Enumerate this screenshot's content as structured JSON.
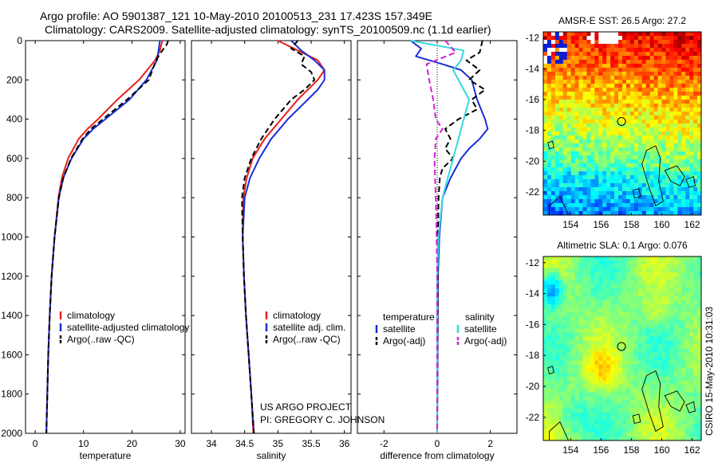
{
  "header": {
    "line1": "Argo profile: AO 5901387_121 10-May-2010 20100513_231 17.423S 157.349E",
    "line2": "Climatology: CARS2009. Satellite-adjusted climatology: synTS_20100509.nc (1.1d earlier)"
  },
  "colors": {
    "climatology": "#e8201c",
    "satellite": "#1a2ed6",
    "argo": "#000000",
    "sat_salinity": "#35d8e0",
    "argo_salinity": "#d21fd6"
  },
  "credits": {
    "line1": "US ARGO PROJECT",
    "line2": "PI: GREGORY C. JOHNSON",
    "timestamp": "CSIRO 15-May-2010 10:31:03"
  },
  "chart_data": [
    {
      "id": "temperature",
      "type": "line",
      "xlabel": "temperature",
      "ylabel": "",
      "xlim": [
        -2,
        31
      ],
      "ylim": [
        2000,
        0
      ],
      "xticks": [
        0,
        10,
        20,
        30
      ],
      "yticks": [
        0,
        200,
        400,
        600,
        800,
        1000,
        1200,
        1400,
        1600,
        1800,
        2000
      ],
      "legend": [
        "climatology",
        "satellite-adjusted climatology",
        "Argo(..raw -QC)"
      ],
      "series": [
        {
          "name": "climatology",
          "color": "climatology",
          "dash": false,
          "depth": [
            0,
            50,
            100,
            200,
            300,
            400,
            450,
            500,
            600,
            700,
            800,
            1000,
            1200,
            1400,
            1600,
            1800,
            2000
          ],
          "values": [
            26.3,
            25.8,
            24.8,
            21.5,
            17.0,
            13.0,
            10.8,
            9.0,
            6.8,
            5.5,
            4.8,
            4.0,
            3.4,
            3.0,
            2.7,
            2.5,
            2.3
          ]
        },
        {
          "name": "satellite-adjusted climatology",
          "color": "satellite",
          "dash": false,
          "depth": [
            0,
            50,
            100,
            200,
            300,
            400,
            450,
            500,
            600,
            700,
            800,
            1000,
            1200,
            1400,
            1600,
            1800,
            2000
          ],
          "values": [
            25.8,
            25.5,
            25.2,
            23.0,
            19.5,
            14.5,
            12.0,
            10.0,
            7.5,
            5.8,
            4.9,
            4.0,
            3.4,
            3.0,
            2.7,
            2.5,
            2.3
          ]
        },
        {
          "name": "Argo(..raw -QC)",
          "color": "argo",
          "dash": true,
          "depth": [
            0,
            20,
            60,
            100,
            200,
            300,
            400,
            450,
            500,
            600,
            700,
            800,
            1000,
            1200,
            1400,
            1600,
            1800,
            2000
          ],
          "values": [
            27.5,
            27.2,
            26.0,
            25.0,
            23.5,
            19.0,
            14.0,
            11.5,
            9.8,
            7.4,
            5.8,
            4.9,
            4.0,
            3.4,
            3.0,
            2.7,
            2.5,
            2.3
          ]
        }
      ]
    },
    {
      "id": "salinity",
      "type": "line",
      "xlabel": "salinity",
      "ylabel": "",
      "xlim": [
        33.7,
        36.1
      ],
      "ylim": [
        2000,
        0
      ],
      "xticks": [
        34,
        34.5,
        35,
        35.5,
        36
      ],
      "legend": [
        "climatology",
        "satellite adj. clim.",
        "Argo(..raw -QC)"
      ],
      "series": [
        {
          "name": "climatology",
          "color": "climatology",
          "dash": false,
          "depth": [
            0,
            50,
            100,
            150,
            200,
            250,
            300,
            400,
            500,
            600,
            700,
            800,
            1000,
            1200,
            1400,
            1600,
            1800,
            2000
          ],
          "values": [
            35.0,
            35.3,
            35.6,
            35.7,
            35.6,
            35.45,
            35.3,
            35.05,
            34.8,
            34.62,
            34.53,
            34.48,
            34.47,
            34.49,
            34.52,
            34.56,
            34.6,
            34.63
          ]
        },
        {
          "name": "satellite adj. clim.",
          "color": "satellite",
          "dash": false,
          "depth": [
            0,
            50,
            100,
            150,
            200,
            250,
            300,
            400,
            500,
            600,
            700,
            800,
            1000,
            1200,
            1400,
            1600,
            1800,
            2000
          ],
          "values": [
            35.2,
            35.35,
            35.55,
            35.7,
            35.7,
            35.6,
            35.45,
            35.15,
            34.9,
            34.72,
            34.58,
            34.5,
            34.47,
            34.49,
            34.52,
            34.56,
            34.6,
            34.64
          ]
        },
        {
          "name": "Argo(..raw -QC)",
          "color": "argo",
          "dash": true,
          "depth": [
            0,
            40,
            80,
            120,
            160,
            200,
            250,
            300,
            400,
            500,
            600,
            700,
            800,
            1000,
            1200,
            1400,
            1600,
            1800,
            2000
          ],
          "values": [
            35.3,
            35.2,
            35.4,
            35.35,
            35.5,
            35.55,
            35.4,
            35.2,
            34.95,
            34.75,
            34.6,
            34.5,
            34.46,
            34.47,
            34.49,
            34.52,
            34.56,
            34.6,
            34.64
          ]
        }
      ]
    },
    {
      "id": "difference",
      "type": "line",
      "xlabel": "difference from climatology",
      "ylabel": "",
      "xlim": [
        -3,
        3
      ],
      "ylim": [
        2000,
        0
      ],
      "xticks": [
        -2,
        0,
        2
      ],
      "legend_titles": [
        "temperature",
        "salinity"
      ],
      "legend": [
        "satellite",
        "Argo(-adj)",
        "satellite",
        "Argo(-adj)"
      ],
      "series": [
        {
          "name": "temperature satellite",
          "color": "satellite",
          "dash": false,
          "depth": [
            0,
            40,
            80,
            120,
            150,
            200,
            300,
            400,
            450,
            500,
            550,
            600,
            700,
            800,
            1000,
            1200,
            2000
          ],
          "values": [
            -1.0,
            -0.6,
            -0.8,
            0.2,
            0.9,
            1.3,
            1.5,
            1.8,
            1.9,
            1.6,
            1.2,
            0.9,
            0.5,
            0.2,
            0.08,
            0.03,
            0.0
          ]
        },
        {
          "name": "temperature Argo(-adj)",
          "color": "argo",
          "dash": true,
          "depth": [
            0,
            60,
            100,
            150,
            200,
            250,
            300,
            350,
            400,
            450,
            500,
            550,
            600,
            650,
            700,
            800,
            1000,
            1200,
            2000
          ],
          "values": [
            1.7,
            1.6,
            1.1,
            1.6,
            1.2,
            1.8,
            1.3,
            1.5,
            0.8,
            0.3,
            0.5,
            0.3,
            0.6,
            0.2,
            0.1,
            0.05,
            0.03,
            0.02,
            0.0
          ]
        },
        {
          "name": "salinity satellite",
          "color": "sat_salinity",
          "dash": false,
          "depth": [
            0,
            50,
            100,
            150,
            200,
            300,
            400,
            500,
            600,
            700,
            800,
            1000,
            1200,
            1600,
            2000
          ],
          "values": [
            -1.0,
            1.0,
            0.9,
            0.6,
            0.8,
            1.2,
            1.0,
            0.8,
            0.6,
            0.4,
            0.2,
            0.05,
            0.0,
            0.0,
            0.0
          ]
        },
        {
          "name": "salinity Argo(-adj)",
          "color": "argo_salinity",
          "dash": true,
          "depth": [
            0,
            60,
            120,
            200,
            300,
            400,
            450,
            500,
            600,
            700,
            800,
            1000,
            1200,
            1600,
            2000
          ],
          "values": [
            0.3,
            0.7,
            -0.4,
            -0.3,
            -0.15,
            -0.05,
            0.2,
            -0.05,
            -0.1,
            -0.08,
            -0.05,
            -0.02,
            0.0,
            0.0,
            0.0
          ]
        }
      ]
    },
    {
      "id": "sst-map",
      "type": "heatmap",
      "title": "AMSR-E SST: 26.5 Argo: 27.2",
      "xlim": [
        152.2,
        162.6
      ],
      "ylim": [
        -23.5,
        -11.6
      ],
      "xticks": [
        154,
        156,
        158,
        160,
        162
      ],
      "yticks": [
        -12,
        -14,
        -16,
        -18,
        -20,
        -22
      ],
      "marker": {
        "lon": 157.35,
        "lat": -17.42
      }
    },
    {
      "id": "sla-map",
      "type": "heatmap",
      "title": "Altimetric SLA: 0.1 Argo: 0.076",
      "xlim": [
        152.2,
        162.6
      ],
      "ylim": [
        -23.5,
        -11.6
      ],
      "xticks": [
        154,
        156,
        158,
        160,
        162
      ],
      "yticks": [
        -12,
        -14,
        -16,
        -18,
        -20,
        -22
      ],
      "marker": {
        "lon": 157.35,
        "lat": -17.42
      }
    }
  ]
}
